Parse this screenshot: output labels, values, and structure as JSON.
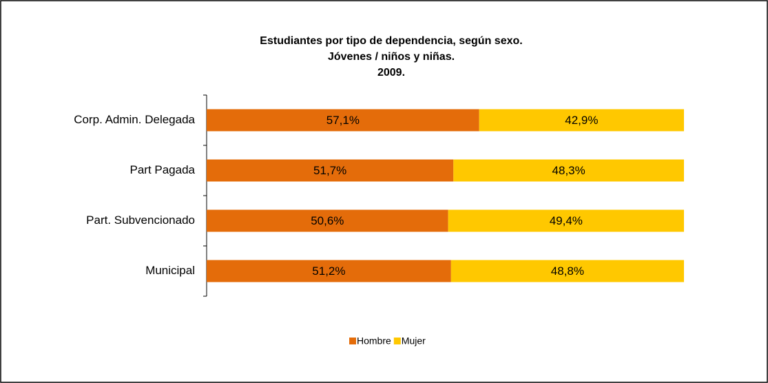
{
  "chart_data": {
    "type": "stacked_bar_horizontal",
    "title": [
      "Estudiantes por tipo de dependencia, según sexo.",
      "Jóvenes / niños y niñas.",
      "2009."
    ],
    "categories": [
      "Corp. Admin. Delegada",
      "Part Pagada",
      "Part. Subvencionado",
      "Municipal"
    ],
    "series": [
      {
        "name": "Hombre",
        "color": "#e46c0a",
        "values": [
          57.1,
          51.7,
          50.6,
          51.2
        ],
        "value_labels": [
          "57,1%",
          "51,7%",
          "50,6%",
          "51,2%"
        ]
      },
      {
        "name": "Mujer",
        "color": "#ffc800",
        "values": [
          42.9,
          48.3,
          49.4,
          48.8
        ],
        "value_labels": [
          "42,9%",
          "48,3%",
          "49,4%",
          "48,8%"
        ]
      }
    ],
    "xlim": [
      0,
      100
    ]
  }
}
